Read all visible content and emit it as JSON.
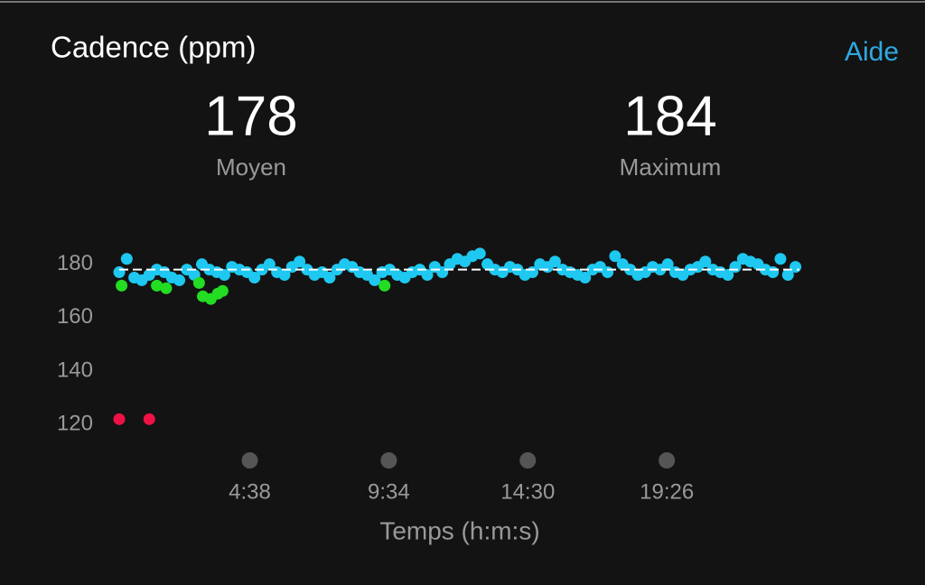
{
  "header": {
    "title": "Cadence (ppm)",
    "help": "Aide"
  },
  "stats": [
    {
      "value": 178,
      "label": "Moyen"
    },
    {
      "value": 184,
      "label": "Maximum"
    }
  ],
  "chart_data": {
    "type": "scatter",
    "xlabel": "Temps (h:m:s)",
    "xlim": [
      0,
      1460
    ],
    "ylim": [
      114,
      188
    ],
    "xticks": [
      {
        "value": 278,
        "label": "4:38"
      },
      {
        "value": 574,
        "label": "9:34"
      },
      {
        "value": 870,
        "label": "14:30"
      },
      {
        "value": 1166,
        "label": "19:26"
      }
    ],
    "yticks": [
      120,
      140,
      160,
      180
    ],
    "series": [
      {
        "color": "#1ec8f0",
        "x": [
          0,
          16,
          32,
          48,
          64,
          80,
          96,
          112,
          128,
          144,
          160,
          176,
          192,
          208,
          224,
          240,
          256,
          272,
          288,
          304,
          320,
          336,
          352,
          368,
          384,
          400,
          416,
          432,
          448,
          464,
          480,
          496,
          512,
          528,
          544,
          560,
          576,
          592,
          608,
          624,
          640,
          656,
          672,
          688,
          704,
          720,
          736,
          752,
          768,
          784,
          800,
          816,
          832,
          848,
          864,
          880,
          896,
          912,
          928,
          944,
          960,
          976,
          992,
          1008,
          1024,
          1040,
          1056,
          1072,
          1088,
          1104,
          1120,
          1136,
          1152,
          1168,
          1184,
          1200,
          1216,
          1232,
          1248,
          1264,
          1280,
          1296,
          1312,
          1328,
          1344,
          1360,
          1376,
          1392,
          1408,
          1424,
          1440
        ],
        "values": [
          177,
          182,
          175,
          174,
          176,
          178,
          177,
          175,
          174,
          178,
          176,
          180,
          178,
          177,
          176,
          179,
          178,
          177,
          175,
          178,
          180,
          177,
          176,
          179,
          181,
          178,
          176,
          177,
          175,
          178,
          180,
          179,
          177,
          176,
          174,
          177,
          178,
          176,
          175,
          177,
          178,
          176,
          179,
          177,
          180,
          182,
          181,
          183,
          184,
          180,
          178,
          177,
          179,
          178,
          176,
          177,
          180,
          179,
          181,
          178,
          177,
          176,
          175,
          178,
          179,
          177,
          183,
          180,
          178,
          176,
          177,
          179,
          178,
          180,
          177,
          176,
          178,
          179,
          181,
          178,
          177,
          176,
          179,
          182,
          181,
          180,
          178,
          177,
          182,
          176,
          179
        ]
      },
      {
        "color": "#22dd22",
        "x": [
          5,
          80,
          100,
          170,
          178,
          195,
          210,
          220,
          565
        ],
        "values": [
          172,
          172,
          171,
          173,
          168,
          167,
          169,
          170,
          172
        ]
      },
      {
        "color": "#ee1144",
        "x": [
          0,
          64
        ],
        "values": [
          122,
          122
        ]
      }
    ]
  }
}
